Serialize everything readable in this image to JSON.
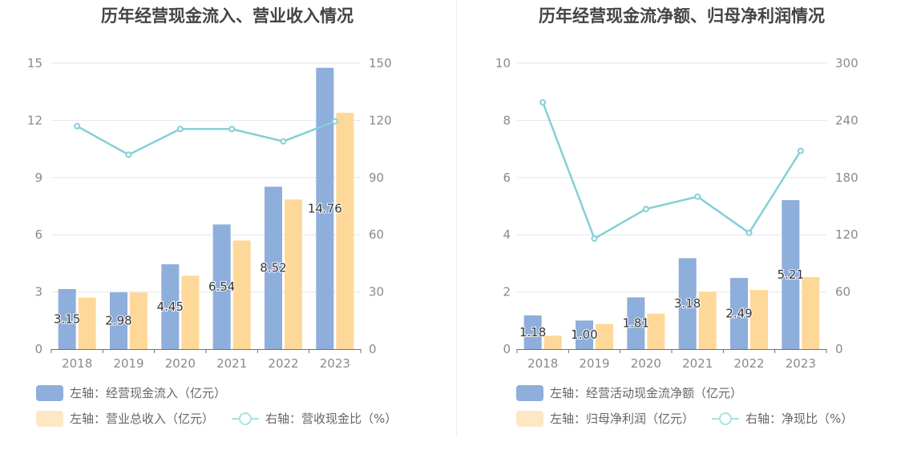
{
  "chart_data": [
    {
      "type": "bar",
      "title": "历年经营现金流入、营业收入情况",
      "categories": [
        "2018",
        "2019",
        "2020",
        "2021",
        "2022",
        "2023"
      ],
      "y_left": {
        "ylim": [
          0,
          15
        ],
        "ticks": [
          "0",
          "3",
          "6",
          "9",
          "12",
          "15"
        ]
      },
      "y_right": {
        "ylim": [
          0,
          150
        ],
        "ticks": [
          "0",
          "30",
          "60",
          "90",
          "120",
          "150"
        ]
      },
      "series": [
        {
          "name": "左轴：经营现金流入（亿元）",
          "kind": "bar",
          "axis": "left",
          "color": "#8eaedb",
          "values": [
            3.15,
            2.98,
            4.45,
            6.54,
            8.52,
            14.76
          ],
          "labels": [
            "3.15",
            "2.98",
            "4.45",
            "6.54",
            "8.52",
            "14.76"
          ]
        },
        {
          "name": "左轴：营业总收入（亿元）",
          "kind": "bar",
          "axis": "left",
          "color": "#fed898",
          "values": [
            2.7,
            2.97,
            3.85,
            5.7,
            7.85,
            12.4
          ]
        },
        {
          "name": "右轴：营收现金比（%）",
          "kind": "line",
          "axis": "right",
          "color": "#83d0d6",
          "values": [
            117,
            102,
            115.5,
            115.5,
            109,
            119.5
          ]
        }
      ]
    },
    {
      "type": "bar",
      "title": "历年经营现金流净额、归母净利润情况",
      "categories": [
        "2018",
        "2019",
        "2020",
        "2021",
        "2022",
        "2023"
      ],
      "y_left": {
        "ylim": [
          0,
          10
        ],
        "ticks": [
          "0",
          "2",
          "4",
          "6",
          "8",
          "10"
        ]
      },
      "y_right": {
        "ylim": [
          0,
          300
        ],
        "ticks": [
          "0",
          "60",
          "120",
          "180",
          "240",
          "300"
        ]
      },
      "series": [
        {
          "name": "左轴：经营活动现金流净额（亿元）",
          "kind": "bar",
          "axis": "left",
          "color": "#8eaedb",
          "values": [
            1.18,
            1.0,
            1.81,
            3.18,
            2.49,
            5.21
          ],
          "labels": [
            "1.18",
            "1.00",
            "1.81",
            "3.18",
            "2.49",
            "5.21"
          ]
        },
        {
          "name": "左轴：归母净利润（亿元）",
          "kind": "bar",
          "axis": "left",
          "color": "#fed898",
          "values": [
            0.47,
            0.88,
            1.24,
            2.0,
            2.07,
            2.52
          ]
        },
        {
          "name": "右轴：净现比（%）",
          "kind": "line",
          "axis": "right",
          "color": "#83d0d6",
          "values": [
            259,
            116,
            147,
            160,
            122,
            208
          ]
        }
      ]
    }
  ]
}
